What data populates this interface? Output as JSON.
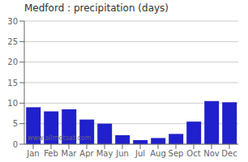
{
  "chart_data": {
    "type": "bar",
    "title": "Medford : precipitation (days)",
    "categories": [
      "Jan",
      "Feb",
      "Mar",
      "Apr",
      "May",
      "Jun",
      "Jul",
      "Aug",
      "Sep",
      "Oct",
      "Nov",
      "Dec"
    ],
    "values": [
      9.0,
      8.0,
      8.5,
      6.0,
      5.0,
      2.2,
      1.0,
      1.5,
      2.5,
      5.5,
      10.5,
      10.2
    ],
    "color": "#2020cc",
    "ylim": [
      0,
      30
    ],
    "yticks": [
      0,
      5,
      10,
      15,
      20,
      25,
      30
    ],
    "grid": true,
    "annotations": [
      "www.allmetsat.com"
    ]
  }
}
